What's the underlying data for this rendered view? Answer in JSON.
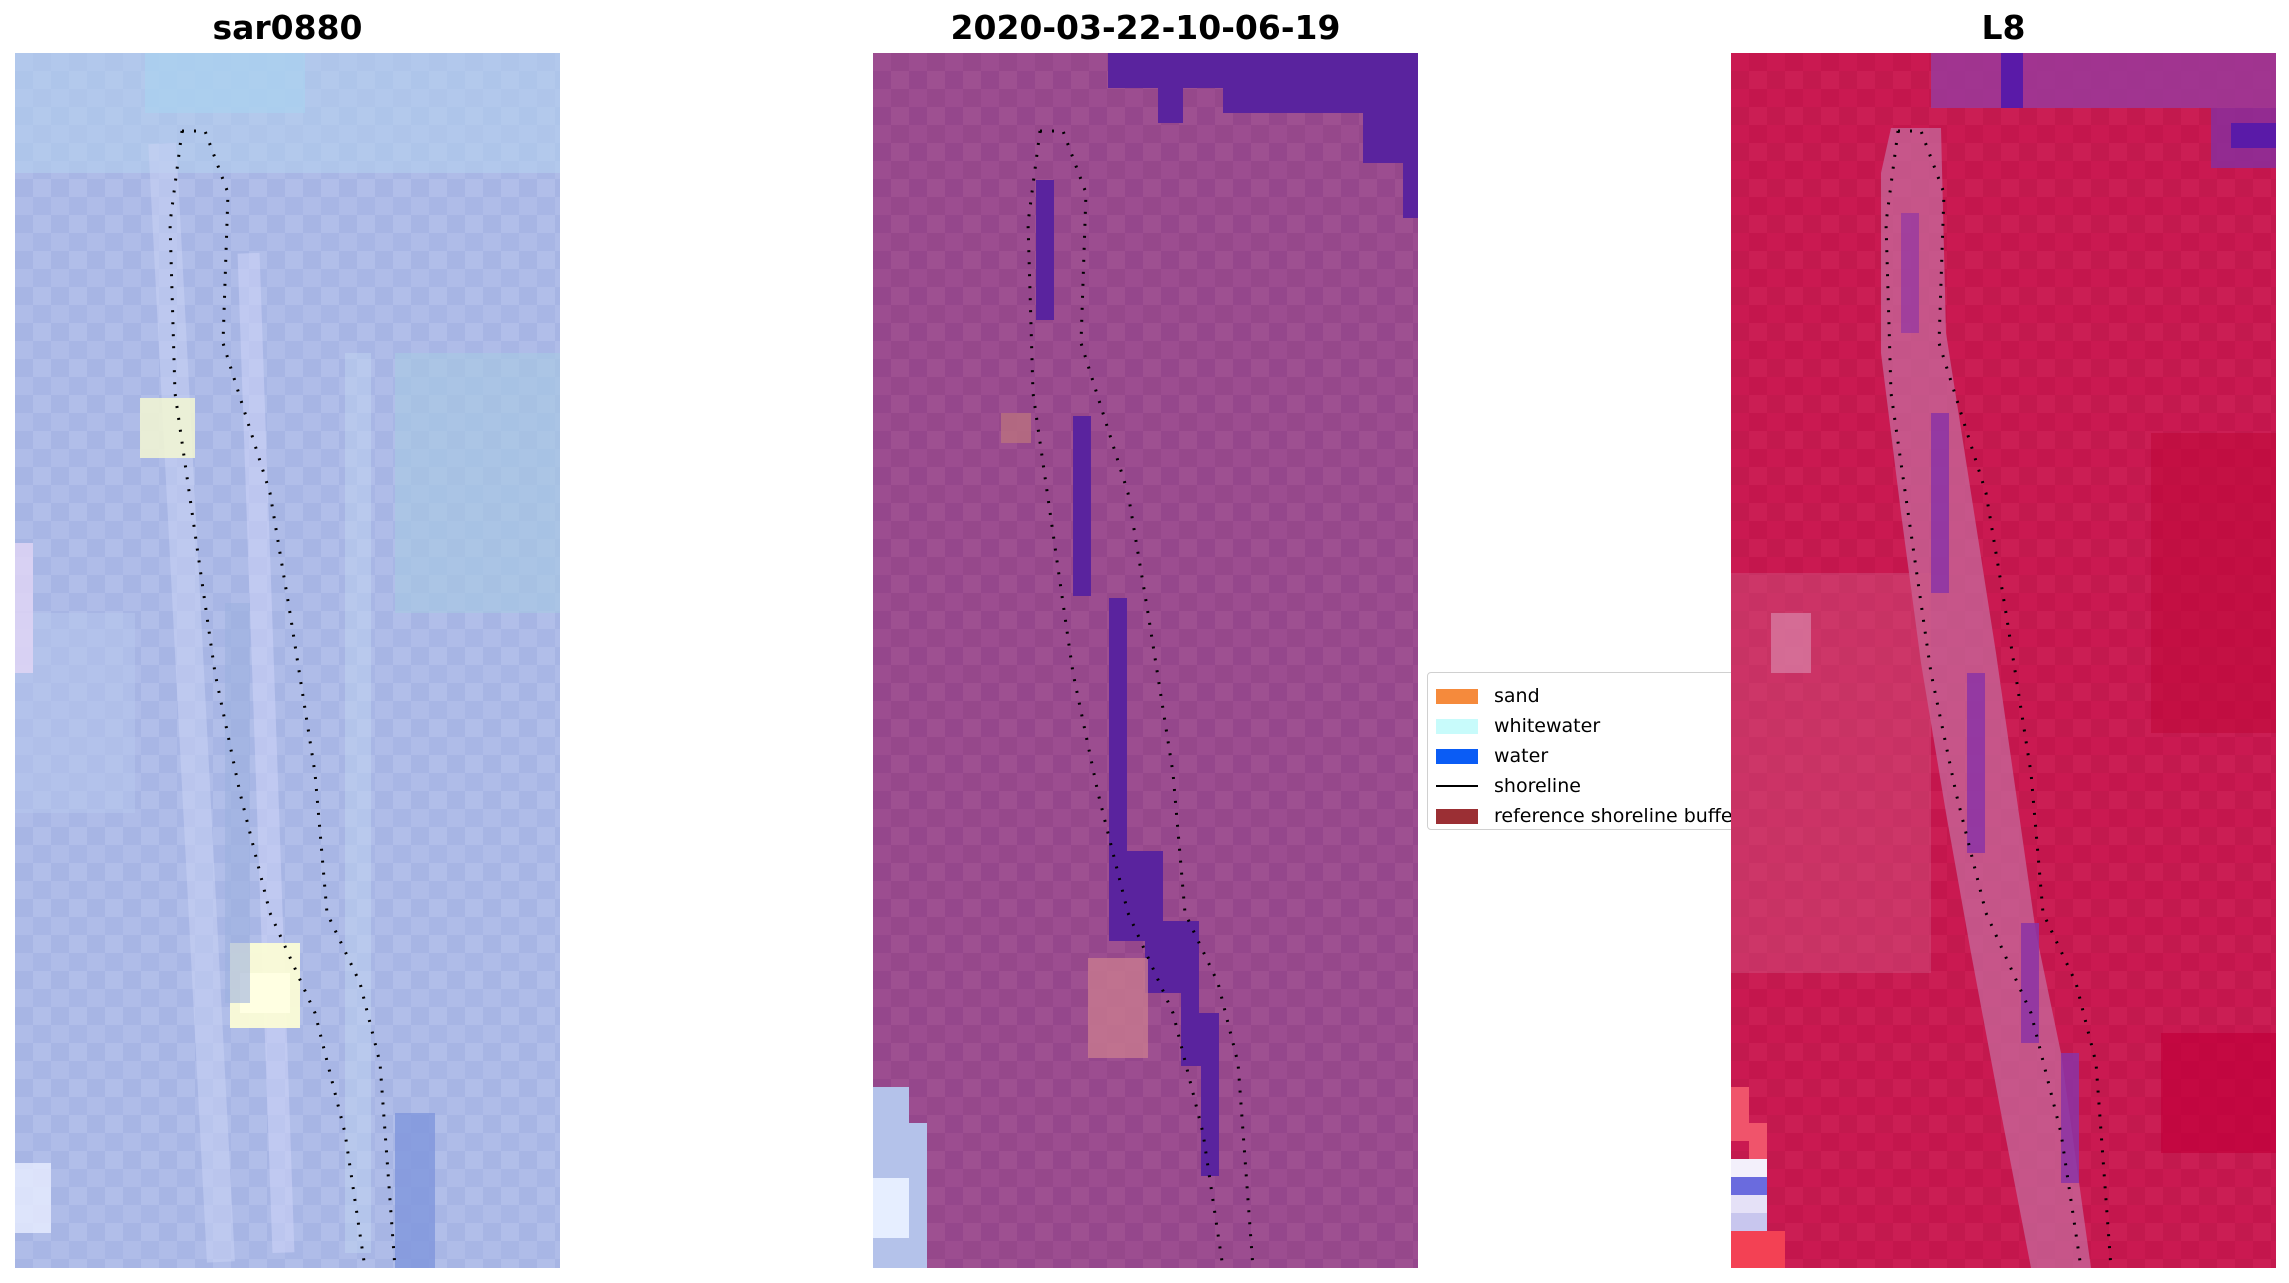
{
  "panels": [
    {
      "title": "sar0880"
    },
    {
      "title": "2020-03-22-10-06-19"
    },
    {
      "title": "L8"
    }
  ],
  "legend": {
    "items": [
      {
        "label": "sand",
        "color": "#f58a3c",
        "kind": "patch"
      },
      {
        "label": "whitewater",
        "color": "#c8fbfb",
        "kind": "patch"
      },
      {
        "label": "water",
        "color": "#0a5cf5",
        "kind": "patch"
      },
      {
        "label": "shoreline",
        "color": "#000000",
        "kind": "line"
      },
      {
        "label": "reference shoreline buffer",
        "color": "#9b2f34",
        "kind": "patch"
      }
    ]
  },
  "colors": {
    "sar_base": "#aab8e6",
    "mid_base": "#9a4b8e",
    "water_class": "#5a239e",
    "l8_base": "#c8174f"
  }
}
